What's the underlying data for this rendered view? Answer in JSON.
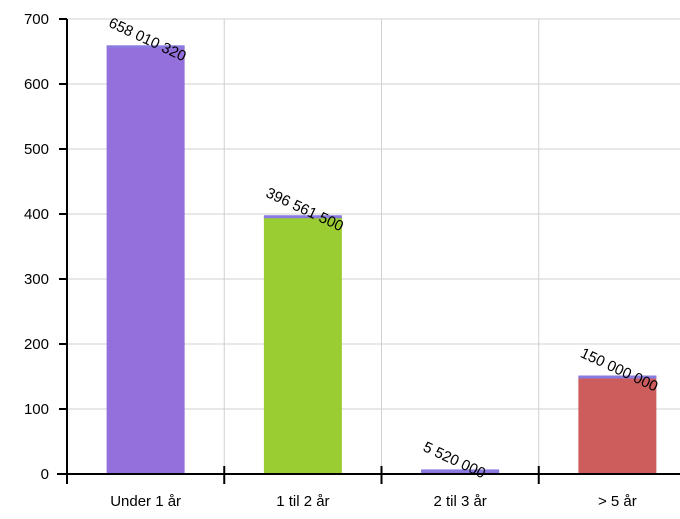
{
  "chart_data": {
    "type": "bar",
    "categories": [
      "Under 1 år",
      "1 til 2 år",
      "2 til 3 år",
      "> 5 år"
    ],
    "values": [
      658.01032,
      396.5615,
      5.52,
      150.0
    ],
    "data_labels": [
      "658 010 320",
      "396 561 500",
      "5 520 000",
      "150 000 000"
    ],
    "colors": [
      "#9370DB",
      "#9ACD32",
      "#9370DB",
      "#CD5C5C"
    ],
    "cap_color": "#8A7BE0",
    "ylim": [
      0,
      700
    ],
    "yticks": [
      0,
      100,
      200,
      300,
      400,
      500,
      600,
      700
    ],
    "ytick_labels": [
      "0",
      "100",
      "200",
      "300",
      "400",
      "500",
      "600",
      "700"
    ],
    "grid": true,
    "title": "",
    "xlabel": "",
    "ylabel": ""
  }
}
